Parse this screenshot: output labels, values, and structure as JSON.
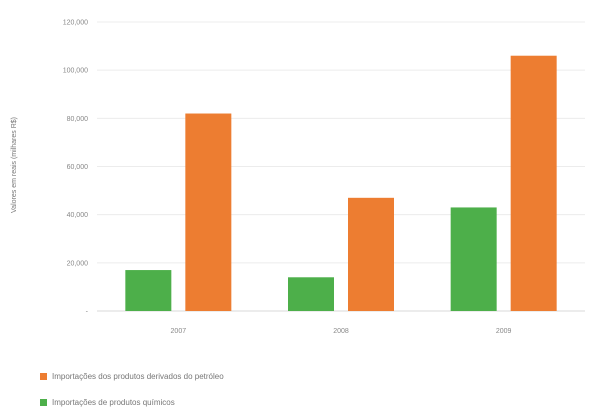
{
  "chart_data": {
    "type": "bar",
    "categories": [
      "2007",
      "2008",
      "2009"
    ],
    "ylabel": "Valores em reais (milhares R$)",
    "ylim": [
      0,
      120000
    ],
    "y_ticks": [
      "-",
      "20,000",
      "40,000",
      "60,000",
      "80,000",
      "100,000",
      "120,000"
    ],
    "grid": true,
    "legend_position": "bottom-left",
    "series": [
      {
        "name": "Importações dos produtos derivados do petróleo",
        "color": "#ed7d31",
        "values": [
          82000,
          47000,
          106000
        ]
      },
      {
        "name": "Importações de produtos químicos",
        "color": "#4daf4a",
        "values": [
          17000,
          14000,
          43000
        ]
      }
    ]
  }
}
